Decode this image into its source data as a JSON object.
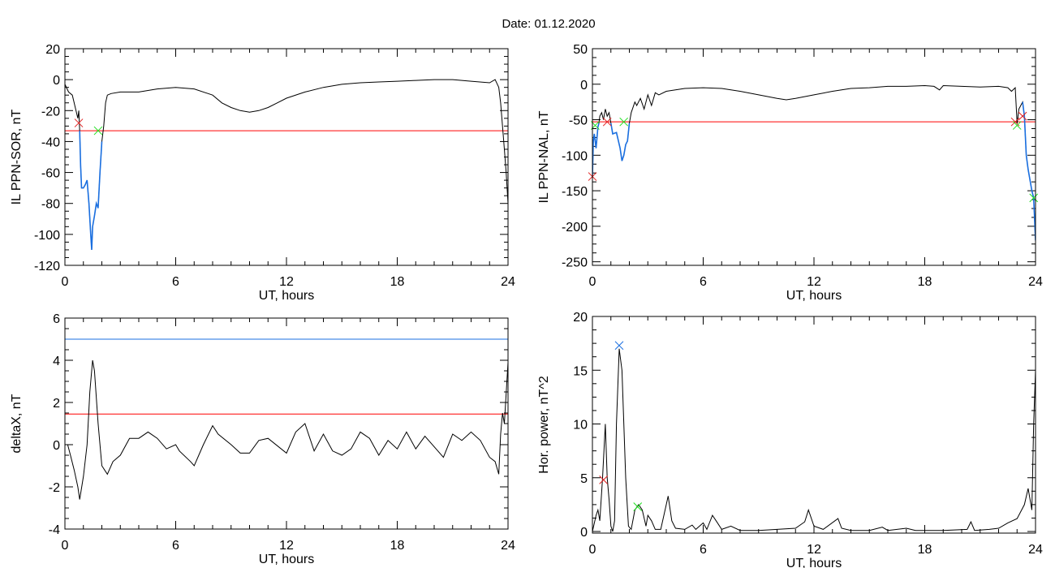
{
  "title": "Date:  01.12.2020",
  "chart_data": [
    {
      "type": "line",
      "xlabel": "UT, hours",
      "ylabel": "IL PPN-SOR, nT",
      "xlim": [
        0,
        24
      ],
      "ylim": [
        -120,
        20
      ],
      "xticks": [
        "0",
        "6",
        "12",
        "18",
        "24"
      ],
      "yticks": [
        "20",
        "0",
        "-20",
        "-40",
        "-60",
        "-80",
        "-100",
        "-120"
      ],
      "x": [
        0,
        0.2,
        0.4,
        0.5,
        0.7,
        0.75,
        0.8,
        0.85,
        0.9,
        1.0,
        1.1,
        1.2,
        1.3,
        1.4,
        1.45,
        1.5,
        1.6,
        1.7,
        1.8,
        1.9,
        2.0,
        2.1,
        2.2,
        2.3,
        2.5,
        3,
        4,
        4.5,
        5,
        6,
        7,
        8,
        8.5,
        9,
        9.5,
        10,
        10.5,
        11,
        11.5,
        12,
        13,
        14,
        15,
        16,
        17,
        18,
        19,
        20,
        21,
        22,
        23,
        23.3,
        23.5,
        23.6,
        23.7,
        23.8,
        23.9,
        24
      ],
      "y": [
        -3,
        -8,
        -10,
        -15,
        -25,
        -20,
        -33,
        -55,
        -70,
        -70,
        -68,
        -65,
        -80,
        -100,
        -110,
        -95,
        -88,
        -80,
        -83,
        -60,
        -40,
        -30,
        -15,
        -10,
        -9,
        -8,
        -8,
        -7,
        -6,
        -5,
        -6,
        -10,
        -15,
        -18,
        -20,
        -21,
        -20,
        -18,
        -15,
        -12,
        -8,
        -5,
        -3,
        -2,
        -1.5,
        -1,
        -0.5,
        0,
        0,
        -1,
        -2,
        0,
        -5,
        -15,
        -30,
        -45,
        -60,
        -80
      ],
      "highlight_ranges": [
        [
          0.8,
          2.05
        ]
      ],
      "threshold": -33,
      "markers": [
        {
          "x": 0.75,
          "y": -28,
          "color": "#e02020"
        },
        {
          "x": 1.8,
          "y": -33,
          "color": "#20e020"
        }
      ],
      "colors": {
        "line": "#000000",
        "highlight": "#1a6fe0",
        "threshold": "#ff0000"
      }
    },
    {
      "type": "line",
      "xlabel": "UT, hours",
      "ylabel": "IL PPN-NAL, nT",
      "xlim": [
        0,
        24
      ],
      "ylim": [
        -255,
        50
      ],
      "xticks": [
        "0",
        "6",
        "12",
        "18",
        "24"
      ],
      "yticks": [
        "50",
        "0",
        "-50",
        "-100",
        "-150",
        "-200",
        "-250"
      ],
      "x": [
        0,
        0.05,
        0.1,
        0.2,
        0.3,
        0.35,
        0.4,
        0.5,
        0.6,
        0.7,
        0.8,
        0.9,
        1.0,
        1.1,
        1.3,
        1.5,
        1.6,
        1.7,
        1.8,
        1.9,
        2.0,
        2.1,
        2.3,
        2.4,
        2.6,
        2.8,
        3.0,
        3.2,
        3.4,
        3.6,
        4,
        4.5,
        5,
        6,
        7,
        8,
        9,
        10,
        10.5,
        11,
        12,
        13,
        14,
        15,
        16,
        17,
        18,
        18.5,
        18.8,
        19,
        20,
        21,
        22,
        22.5,
        22.7,
        22.9,
        23.0,
        23.1,
        23.3,
        23.4,
        23.5,
        23.6,
        23.8,
        23.9,
        24
      ],
      "y": [
        -130,
        -80,
        -70,
        -90,
        -60,
        -55,
        -45,
        -40,
        -50,
        -35,
        -45,
        -40,
        -55,
        -70,
        -68,
        -90,
        -108,
        -100,
        -85,
        -80,
        -55,
        -40,
        -25,
        -30,
        -20,
        -35,
        -15,
        -30,
        -12,
        -15,
        -10,
        -8,
        -6,
        -5,
        -6,
        -10,
        -15,
        -20,
        -22,
        -20,
        -15,
        -10,
        -6,
        -5,
        -3,
        -3,
        -2,
        -3,
        -8,
        -2,
        -3,
        -4,
        -3,
        -5,
        -10,
        -5,
        -55,
        -35,
        -25,
        -45,
        -100,
        -120,
        -150,
        -160,
        -220
      ],
      "highlight_ranges": [
        [
          0,
          0.35
        ],
        [
          1.0,
          2.0
        ],
        [
          23.3,
          24
        ]
      ],
      "threshold": -53,
      "markers": [
        {
          "x": 0,
          "y": -130,
          "color": "#e02020"
        },
        {
          "x": 0.15,
          "y": -58,
          "color": "#20e020"
        },
        {
          "x": 0.8,
          "y": -53,
          "color": "#e02020"
        },
        {
          "x": 1.7,
          "y": -53,
          "color": "#20e020"
        },
        {
          "x": 22.9,
          "y": -53,
          "color": "#e02020"
        },
        {
          "x": 23.0,
          "y": -58,
          "color": "#20e020"
        },
        {
          "x": 23.3,
          "y": -45,
          "color": "#e02020"
        },
        {
          "x": 23.9,
          "y": -160,
          "color": "#20e020"
        }
      ],
      "colors": {
        "line": "#000000",
        "highlight": "#1a6fe0",
        "threshold": "#ff0000"
      }
    },
    {
      "type": "line",
      "xlabel": "UT, hours",
      "ylabel": "deltaX, nT",
      "xlim": [
        0,
        24
      ],
      "ylim": [
        -4,
        6
      ],
      "xticks": [
        "0",
        "6",
        "12",
        "18",
        "24"
      ],
      "yticks": [
        "6",
        "4",
        "2",
        "0",
        "-2",
        "-4"
      ],
      "x": [
        0,
        0.15,
        0.3,
        0.5,
        0.7,
        0.8,
        1.0,
        1.2,
        1.35,
        1.5,
        1.6,
        1.8,
        2.0,
        2.3,
        2.6,
        3.0,
        3.5,
        4,
        4.5,
        5,
        5.5,
        6,
        6.2,
        6.8,
        7.0,
        7.5,
        8.0,
        8.3,
        9,
        9.5,
        10,
        10.5,
        11,
        12,
        12.5,
        13,
        13.5,
        14,
        14.5,
        15,
        15.5,
        16,
        16.5,
        17,
        17.5,
        18,
        18.5,
        19,
        19.5,
        20,
        20.5,
        21,
        21.5,
        22,
        22.5,
        23,
        23.3,
        23.5,
        23.6,
        23.7,
        23.8,
        24
      ],
      "y": [
        0,
        0,
        -0.5,
        -1.2,
        -2.0,
        -2.6,
        -1.5,
        0,
        2.5,
        4.0,
        3.5,
        1.0,
        -1.0,
        -1.4,
        -0.8,
        -0.5,
        0.3,
        0.3,
        0.6,
        0.3,
        -0.2,
        0,
        -0.3,
        -0.8,
        -1.0,
        0,
        0.9,
        0.5,
        0,
        -0.4,
        -0.4,
        0.2,
        0.3,
        -0.4,
        0.6,
        1.0,
        -0.3,
        0.5,
        -0.3,
        -0.5,
        -0.2,
        0.6,
        0.3,
        -0.5,
        0.2,
        -0.2,
        0.6,
        -0.2,
        0.4,
        -0.1,
        -0.6,
        0.5,
        0.2,
        0.6,
        0.2,
        -0.6,
        -0.8,
        -1.4,
        0.5,
        1.5,
        1.0,
        3.9
      ],
      "hlines": [
        {
          "y": 5,
          "color": "#1a6fe0"
        },
        {
          "y": 1.45,
          "color": "#ff0000"
        }
      ],
      "colors": {
        "line": "#000000"
      }
    },
    {
      "type": "line",
      "xlabel": "UT, hours",
      "ylabel": "Hor. power, nT^2",
      "xlim": [
        0,
        24
      ],
      "ylim": [
        -0.15,
        20
      ],
      "xticks": [
        "0",
        "6",
        "12",
        "18",
        "24"
      ],
      "yticks": [
        "20",
        "15",
        "10",
        "5",
        "0"
      ],
      "x": [
        0,
        0.2,
        0.3,
        0.4,
        0.55,
        0.7,
        0.8,
        0.9,
        1.0,
        1.1,
        1.2,
        1.3,
        1.45,
        1.6,
        1.7,
        1.8,
        1.95,
        2.1,
        2.3,
        2.5,
        2.7,
        2.9,
        3.0,
        3.2,
        3.4,
        3.7,
        4.0,
        4.1,
        4.3,
        4.5,
        5,
        5.4,
        5.6,
        6.0,
        6.2,
        6.5,
        6.7,
        7,
        7.5,
        8,
        9,
        10,
        11,
        11.5,
        11.7,
        12,
        12.5,
        13.3,
        13.5,
        14,
        15,
        15.7,
        16,
        17,
        17.5,
        19,
        20.3,
        20.5,
        20.7,
        21.5,
        22,
        22.5,
        23,
        23.4,
        23.6,
        23.8,
        23.9,
        24
      ],
      "y": [
        0,
        1.5,
        2,
        1,
        5,
        10,
        5,
        3,
        0.5,
        0,
        1,
        10,
        17,
        15,
        10,
        5,
        0.5,
        0.2,
        2,
        2.5,
        2,
        0.5,
        1.5,
        1,
        0.2,
        0.2,
        2.5,
        3.3,
        1,
        0.3,
        0.2,
        0.6,
        0.2,
        0.8,
        0.2,
        1.5,
        1,
        0.2,
        0.5,
        0.1,
        0.1,
        0.2,
        0.3,
        0.9,
        2,
        0.5,
        0.2,
        1.2,
        0.3,
        0.1,
        0.1,
        0.4,
        0.1,
        0.3,
        0.1,
        0.1,
        0.2,
        0.9,
        0.1,
        0.2,
        0.3,
        0.8,
        1.2,
        2.5,
        4,
        2,
        10,
        15
      ],
      "markers": [
        {
          "x": 0.6,
          "y": 4.8,
          "color": "#e02020"
        },
        {
          "x": 1.45,
          "y": 17.3,
          "color": "#1a6fe0"
        },
        {
          "x": 2.45,
          "y": 2.3,
          "color": "#20e020"
        }
      ],
      "colors": {
        "line": "#000000"
      }
    }
  ]
}
